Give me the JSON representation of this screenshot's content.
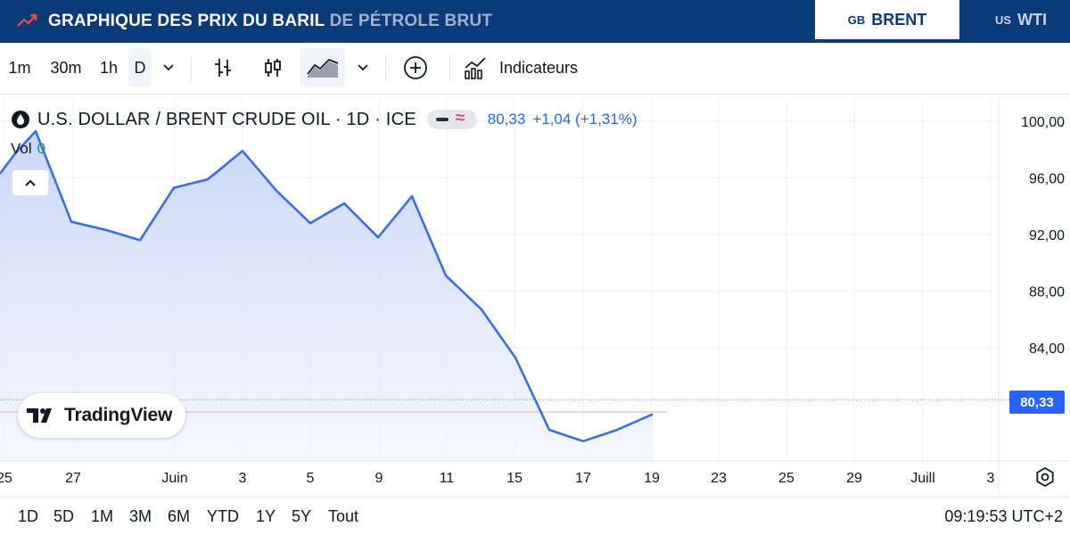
{
  "banner": {
    "title_main": "GRAPHIQUE DES PRIX DU BARIL",
    "title_sub": "DE PÉTROLE BRUT",
    "tabs": [
      {
        "country": "GB",
        "label": "BRENT",
        "active": true
      },
      {
        "country": "US",
        "label": "WTI",
        "active": false
      }
    ]
  },
  "toolbar": {
    "intervals": [
      "1m",
      "30m",
      "1h",
      "D"
    ],
    "active_interval": "D",
    "indicators_label": "Indicateurs",
    "icons": [
      "chevron-down-icon",
      "bar-chart-icon",
      "candlestick-icon",
      "area-chart-icon",
      "chevron-down-icon",
      "add-circle-icon",
      "indicators-icon"
    ]
  },
  "legend": {
    "symbol": "U.S. DOLLAR / BRENT CRUDE OIL · 1D · ICE",
    "last": "80,33",
    "change": "+1,04 (+1,31%)",
    "vol_label": "Vol",
    "vol_value": "0"
  },
  "logo_text": "TradingView",
  "price_tag": "80,33",
  "bottom": {
    "ranges": [
      "1D",
      "5D",
      "1M",
      "3M",
      "6M",
      "YTD",
      "1Y",
      "5Y",
      "Tout"
    ],
    "time": "09:19:53 UTC+2"
  },
  "colors": {
    "banner": "#0b3a78",
    "line": "#3d6de0",
    "area_top": "#c5d4f7",
    "price_tag": "#2962ff"
  },
  "chart_data": {
    "type": "area",
    "title": "U.S. DOLLAR / BRENT CRUDE OIL · 1D · ICE",
    "x_ticks": [
      "25",
      "27",
      "Juin",
      "3",
      "5",
      "9",
      "11",
      "15",
      "17",
      "19",
      "23",
      "25",
      "29",
      "Juill",
      "3"
    ],
    "y_ticks": [
      "100,00",
      "96,00",
      "92,00",
      "88,00",
      "84,00"
    ],
    "ylim": [
      76.5,
      101.5
    ],
    "grid": true,
    "series": [
      {
        "points": [
          {
            "x": "May 24",
            "y": 96.3
          },
          {
            "x": "May 25",
            "y": 97.8
          },
          {
            "x": "May 26",
            "y": 99.3
          },
          {
            "x": "May 27",
            "y": 92.9
          },
          {
            "x": "May 30",
            "y": 92.3
          },
          {
            "x": "May 31",
            "y": 91.6
          },
          {
            "x": "Jun 1",
            "y": 95.3
          },
          {
            "x": "Jun 2",
            "y": 95.9
          },
          {
            "x": "Jun 3",
            "y": 97.9
          },
          {
            "x": "Jun 6",
            "y": 95.1
          },
          {
            "x": "Jun 7",
            "y": 92.8
          },
          {
            "x": "Jun 8",
            "y": 94.2
          },
          {
            "x": "Jun 9",
            "y": 91.8
          },
          {
            "x": "Jun 10",
            "y": 94.7
          },
          {
            "x": "Jun 13",
            "y": 89.1
          },
          {
            "x": "Jun 14",
            "y": 86.7
          },
          {
            "x": "Jun 15",
            "y": 83.3
          },
          {
            "x": "Jun 16",
            "y": 78.2
          },
          {
            "x": "Jun 17",
            "y": 77.4
          },
          {
            "x": "Jun 18",
            "y": 78.2
          },
          {
            "x": "Jun 19",
            "y": 79.3
          }
        ]
      }
    ],
    "last_price": 80.33
  }
}
